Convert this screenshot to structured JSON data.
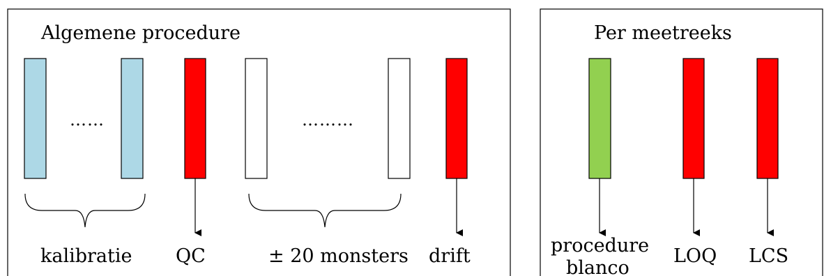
{
  "colors": {
    "calibration": "#add8e6",
    "qc_red": "#ff0000",
    "sample": "#ffffff",
    "blank_green": "#92d050",
    "stroke": "#000000"
  },
  "left_panel": {
    "title": "Algemene procedure",
    "dots_calibration": "……",
    "dots_samples": "………",
    "labels": {
      "calibration": "kalibratie",
      "qc": "QC",
      "samples": "± 20 monsters",
      "drift": "drift"
    }
  },
  "right_panel": {
    "title": "Per meetreeks",
    "labels": {
      "blank_line1": "procedure",
      "blank_line2": "blanco",
      "loq": "LOQ",
      "lcs": "LCS"
    }
  }
}
